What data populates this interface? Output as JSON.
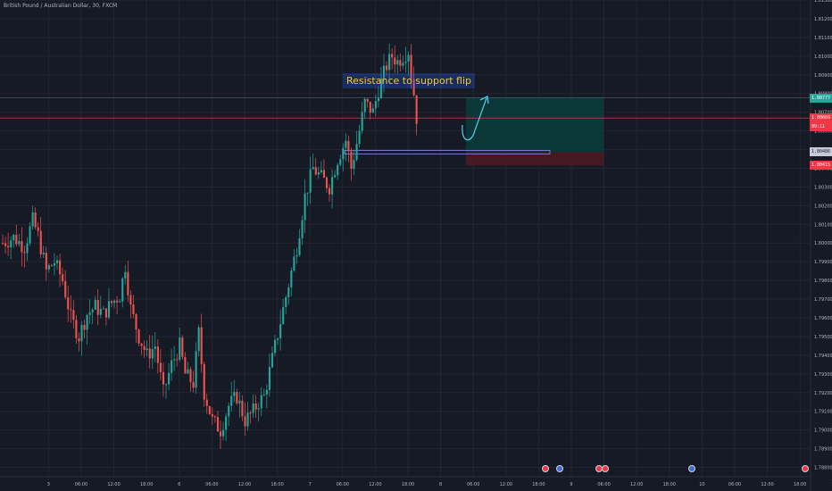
{
  "header": {
    "title": "British Pound / Australian Dollar, 30, FXCM"
  },
  "annotation": {
    "text": "Resistance to support flip"
  },
  "colors": {
    "up": "#26a69a",
    "down": "#ef5350",
    "bg": "#161a25",
    "grid": "#232632",
    "text": "#b2b5be",
    "target_zone": "#0b3b3b",
    "stop_zone": "#4a1a22",
    "current_line": "#e0474e",
    "level_line": "#8b8fe0",
    "arrow": "#4ec8e0"
  },
  "price_tags": [
    {
      "id": "target",
      "label": "1.80777",
      "value": 1.80777,
      "color": "#26a69a"
    },
    {
      "id": "current",
      "label": "1.80669",
      "value": 1.80669,
      "color": "#f23645"
    },
    {
      "id": "countdown",
      "label": "09:11",
      "value": 1.80624,
      "color": "#f23645"
    },
    {
      "id": "entry",
      "label": "1.80486",
      "value": 1.80486,
      "color": "#c8cadb"
    },
    {
      "id": "stop",
      "label": "1.80415",
      "value": 1.80415,
      "color": "#f23645"
    }
  ],
  "chart_data": {
    "type": "candlestick",
    "title": "British Pound / Australian Dollar, 30, FXCM",
    "ylim": [
      1.7875,
      1.813
    ],
    "y_ticks": [
      "1.78800",
      "1.78900",
      "1.79000",
      "1.79100",
      "1.79200",
      "1.79300",
      "1.79400",
      "1.79500",
      "1.79600",
      "1.79700",
      "1.79800",
      "1.79900",
      "1.80000",
      "1.80100",
      "1.80200",
      "1.80300",
      "1.80400",
      "1.80500",
      "1.80600",
      "1.80700",
      "1.80800",
      "1.80900",
      "1.81000",
      "1.81100",
      "1.81200",
      "1.81300"
    ],
    "x_ticks": [
      "3",
      "06:00",
      "12:00",
      "18:00",
      "6",
      "06:00",
      "12:00",
      "18:00",
      "7",
      "06:00",
      "12:00",
      "18:00",
      "8",
      "06:00",
      "12:00",
      "18:00",
      "9",
      "06:00",
      "12:00",
      "18:00",
      "10",
      "06:00",
      "12:00",
      "18:00",
      "1"
    ],
    "x_tick_index": [
      8,
      20,
      32,
      44,
      56,
      68,
      80,
      92,
      104,
      116,
      128,
      140,
      152,
      164,
      176,
      188,
      200,
      212,
      224,
      236,
      248,
      260,
      272,
      284,
      296
    ],
    "n_slots": 300,
    "close_path": [
      [
        0,
        1.8
      ],
      [
        4,
        1.8003
      ],
      [
        8,
        1.7998
      ],
      [
        11,
        1.8012
      ],
      [
        13,
        1.8004
      ],
      [
        16,
        1.7985
      ],
      [
        19,
        1.799
      ],
      [
        22,
        1.798
      ],
      [
        25,
        1.796
      ],
      [
        28,
        1.795
      ],
      [
        31,
        1.7962
      ],
      [
        34,
        1.7966
      ],
      [
        37,
        1.7962
      ],
      [
        40,
        1.7968
      ],
      [
        43,
        1.7972
      ],
      [
        45,
        1.7988
      ],
      [
        47,
        1.7965
      ],
      [
        50,
        1.795
      ],
      [
        53,
        1.794
      ],
      [
        56,
        1.7945
      ],
      [
        59,
        1.792
      ],
      [
        62,
        1.7935
      ],
      [
        65,
        1.7945
      ],
      [
        67,
        1.793
      ],
      [
        70,
        1.7925
      ],
      [
        72,
        1.7952
      ],
      [
        74,
        1.792
      ],
      [
        77,
        1.7905
      ],
      [
        80,
        1.79
      ],
      [
        83,
        1.7913
      ],
      [
        86,
        1.7918
      ],
      [
        89,
        1.7905
      ],
      [
        92,
        1.791
      ],
      [
        94,
        1.7915
      ],
      [
        96,
        1.7918
      ],
      [
        99,
        1.7938
      ],
      [
        102,
        1.7958
      ],
      [
        105,
        1.7978
      ],
      [
        108,
        1.7998
      ],
      [
        111,
        1.8025
      ],
      [
        114,
        1.804
      ],
      [
        117,
        1.8035
      ],
      [
        120,
        1.803
      ],
      [
        123,
        1.8045
      ],
      [
        126,
        1.8055
      ],
      [
        128,
        1.804
      ],
      [
        131,
        1.806
      ],
      [
        133,
        1.8075
      ],
      [
        136,
        1.807
      ],
      [
        138,
        1.8082
      ],
      [
        141,
        1.8095
      ],
      [
        143,
        1.81
      ],
      [
        145,
        1.8097
      ],
      [
        147,
        1.81
      ],
      [
        149,
        1.8103
      ],
      [
        150,
        1.809
      ],
      [
        151,
        1.808
      ],
      [
        152,
        1.8067
      ]
    ],
    "levels": {
      "entry": 1.80486,
      "target": 1.80777,
      "stop": 1.80415,
      "current": 1.80669,
      "resistance_line": 1.80486
    },
    "zones": [
      {
        "name": "target-zone",
        "from": 1.80486,
        "to": 1.80777
      },
      {
        "name": "stop-zone",
        "from": 1.80415,
        "to": 1.80486
      }
    ]
  }
}
